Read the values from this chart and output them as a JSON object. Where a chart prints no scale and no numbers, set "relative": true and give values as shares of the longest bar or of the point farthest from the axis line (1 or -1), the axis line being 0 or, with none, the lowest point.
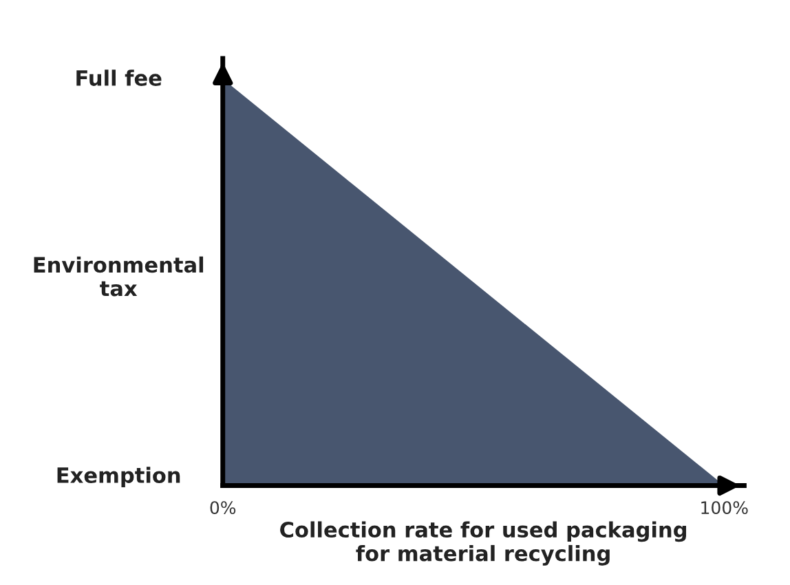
{
  "chart_data": {
    "type": "area",
    "x": [
      0,
      100
    ],
    "relative": true,
    "series": [
      {
        "color": "#48566f",
        "values": [
          1,
          0
        ]
      }
    ],
    "xlim": [
      0,
      104
    ],
    "xticks": [
      {
        "value": 0,
        "label": "0%"
      },
      {
        "value": 100,
        "label": "100%"
      }
    ],
    "annotations": [
      "Full fee",
      "Environmental\ntax",
      "Exemption"
    ],
    "xlabel": "Collection rate for used packaging\nfor material recycling",
    "grid": false,
    "legend": false
  }
}
